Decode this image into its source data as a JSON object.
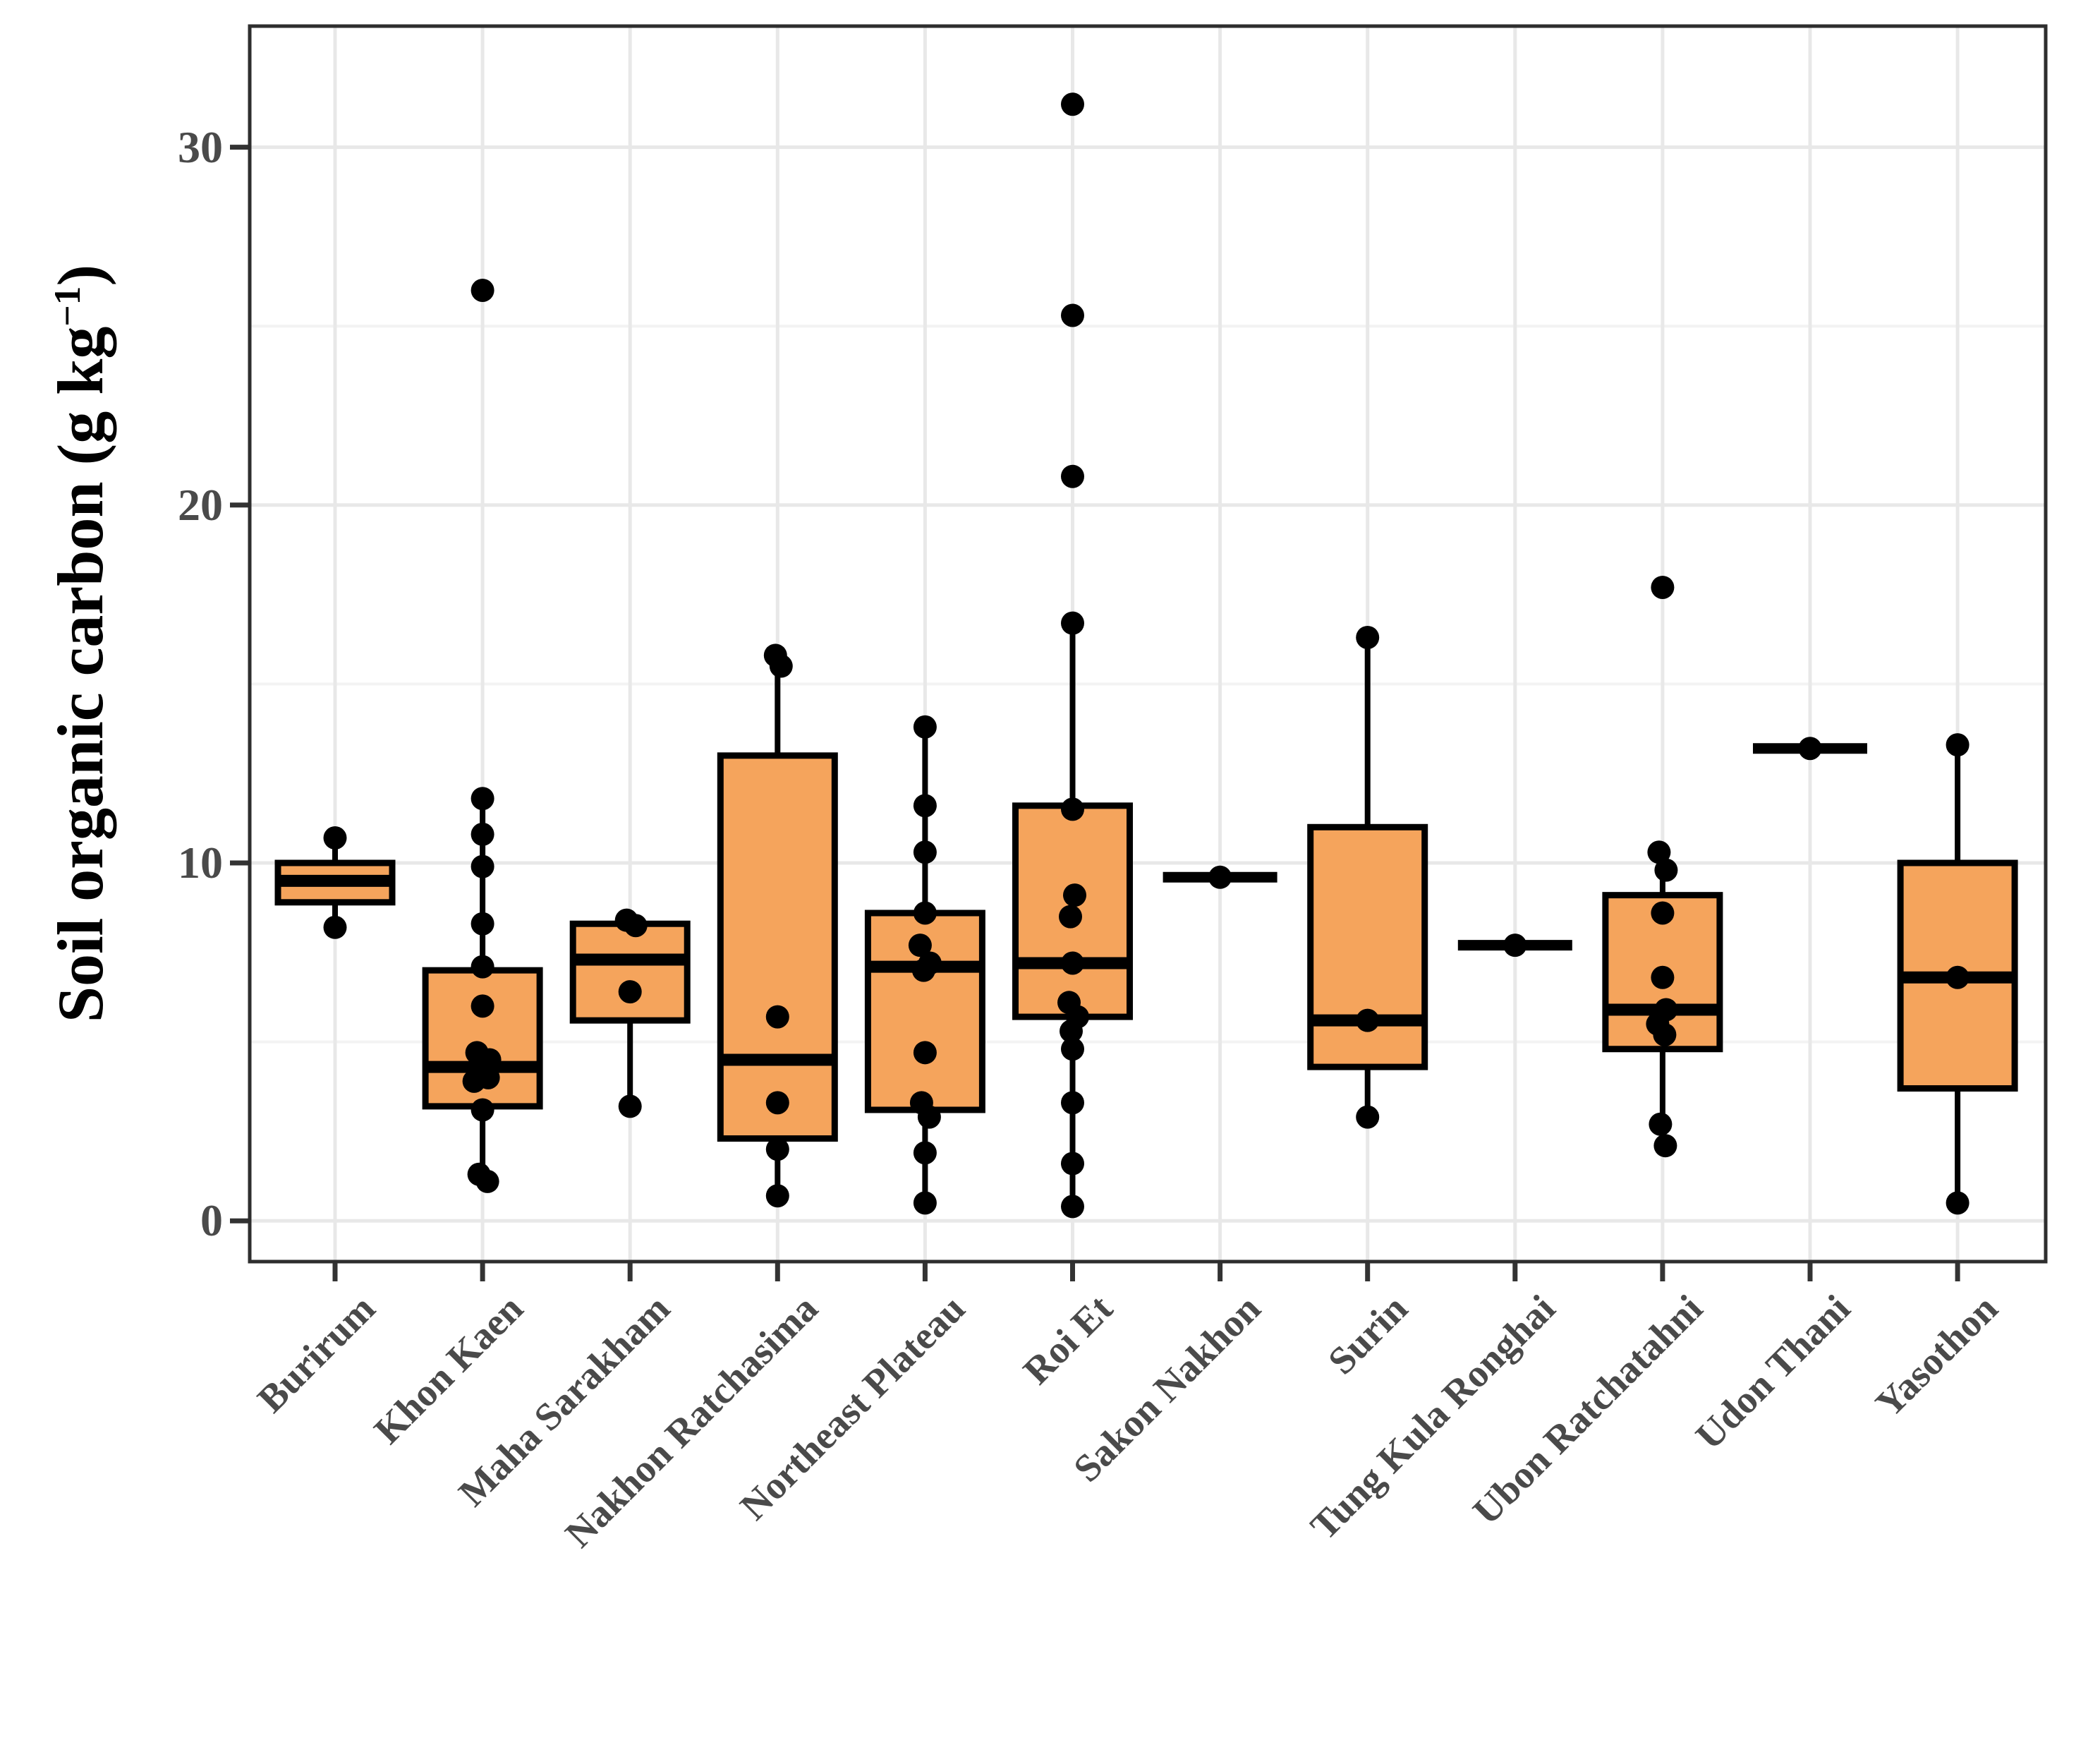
{
  "chart_data": {
    "type": "boxplot",
    "title": "",
    "xlabel": "",
    "ylabel": "Soil organic carbon (g kg−1)",
    "ylabel_parts": {
      "prefix": "Soil organic carbon (g kg",
      "sup": "−1",
      "suffix": ")"
    },
    "yticks": [
      0,
      10,
      20,
      30
    ],
    "yticks_minor": [
      5,
      15,
      25
    ],
    "ylim": [
      0,
      31.2
    ],
    "grid": {
      "horizontal_major": true,
      "horizontal_minor": true,
      "vertical_major_at_categories": true
    },
    "legend": "none",
    "colors": {
      "box_fill": "#F5A45C",
      "box_stroke": "#000000",
      "point": "#000000",
      "grid_major": "#E8E8E8",
      "grid_minor": "#F3F3F3",
      "panel_border": "#2E2E2E",
      "tick": "#333333",
      "axis_text": "#4A4A4A",
      "title_text": "#000000",
      "background": "#FFFFFF"
    },
    "categories": [
      "Burirum",
      "Khon Kaen",
      "Maha Sarakham",
      "Nakhon Ratchasima",
      "Northeast Plateau",
      "Roi Et",
      "Sakon Nakhon",
      "Surin",
      "Tung Kula Ronghai",
      "Ubon Ratchatahni",
      "Udon Thani",
      "Yasothon"
    ],
    "series": [
      {
        "label": "Burirum",
        "whisker_low": 8.2,
        "q1": 8.9,
        "median": 9.5,
        "q3": 10.0,
        "whisker_high": 10.7,
        "outliers": [],
        "points": [
          {
            "v": 10.7
          },
          {
            "v": 8.2
          }
        ]
      },
      {
        "label": "Khon Kaen",
        "whisker_low": 1.1,
        "q1": 3.2,
        "median": 4.3,
        "q3": 7.0,
        "whisker_high": 11.8,
        "outliers": [
          26.0
        ],
        "points": [
          {
            "v": 11.8
          },
          {
            "v": 10.8
          },
          {
            "v": 9.9
          },
          {
            "v": 8.3
          },
          {
            "v": 7.1
          },
          {
            "v": 6.0
          },
          {
            "v": 4.7,
            "dx": -8
          },
          {
            "v": 4.5,
            "dx": 10
          },
          {
            "v": 4.2,
            "dx": -4
          },
          {
            "v": 4.0,
            "dx": 8
          },
          {
            "v": 3.9,
            "dx": -12
          },
          {
            "v": 3.1
          },
          {
            "v": 1.3,
            "dx": -5
          },
          {
            "v": 1.1,
            "dx": 7
          }
        ]
      },
      {
        "label": "Maha Sarakham",
        "whisker_low": 3.2,
        "q1": 5.6,
        "median": 7.3,
        "q3": 8.3,
        "whisker_high": 8.4,
        "outliers": [],
        "points": [
          {
            "v": 8.4,
            "dx": -5
          },
          {
            "v": 8.25,
            "dx": 8
          },
          {
            "v": 6.4
          },
          {
            "v": 3.2
          }
        ]
      },
      {
        "label": "Nakhon Ratchasima",
        "whisker_low": 0.7,
        "q1": 2.3,
        "median": 4.5,
        "q3": 13.0,
        "whisker_high": 15.8,
        "outliers": [],
        "points": [
          {
            "v": 15.8,
            "dx": -3
          },
          {
            "v": 15.5,
            "dx": 5
          },
          {
            "v": 5.7
          },
          {
            "v": 3.3
          },
          {
            "v": 2.0
          },
          {
            "v": 0.7
          }
        ]
      },
      {
        "label": "Northeast Plateau",
        "whisker_low": 0.5,
        "q1": 3.1,
        "median": 7.1,
        "q3": 8.6,
        "whisker_high": 13.8,
        "outliers": [],
        "points": [
          {
            "v": 13.8
          },
          {
            "v": 11.6
          },
          {
            "v": 10.3
          },
          {
            "v": 8.6
          },
          {
            "v": 7.7,
            "dx": -7
          },
          {
            "v": 7.2,
            "dx": 7
          },
          {
            "v": 7.0,
            "dx": -2
          },
          {
            "v": 4.7
          },
          {
            "v": 3.3,
            "dx": -5
          },
          {
            "v": 2.9,
            "dx": 6
          },
          {
            "v": 1.9
          },
          {
            "v": 0.5
          }
        ]
      },
      {
        "label": "Roi Et",
        "whisker_low": 0.4,
        "q1": 5.7,
        "median": 7.2,
        "q3": 11.6,
        "whisker_high": 16.7,
        "outliers": [
          31.2,
          25.3,
          20.8
        ],
        "points": [
          {
            "v": 16.7
          },
          {
            "v": 11.5
          },
          {
            "v": 9.1,
            "dx": 3
          },
          {
            "v": 8.5,
            "dx": -3
          },
          {
            "v": 7.2
          },
          {
            "v": 6.1,
            "dx": -5
          },
          {
            "v": 5.7,
            "dx": 7
          },
          {
            "v": 5.3,
            "dx": -2
          },
          {
            "v": 4.8
          },
          {
            "v": 3.3
          },
          {
            "v": 1.6
          },
          {
            "v": 0.4
          }
        ]
      },
      {
        "label": "Sakon Nakhon",
        "single": 9.6,
        "outliers": [],
        "points": [
          {
            "v": 9.6
          }
        ]
      },
      {
        "label": "Surin",
        "whisker_low": 2.9,
        "q1": 4.3,
        "median": 5.6,
        "q3": 11.0,
        "whisker_high": 16.3,
        "outliers": [],
        "points": [
          {
            "v": 16.3
          },
          {
            "v": 5.6
          },
          {
            "v": 2.9
          }
        ]
      },
      {
        "label": "Tung Kula Ronghai",
        "single": 7.7,
        "outliers": [],
        "points": [
          {
            "v": 7.7
          }
        ]
      },
      {
        "label": "Ubon Ratchatahni",
        "whisker_low": 2.1,
        "q1": 4.8,
        "median": 5.9,
        "q3": 9.1,
        "whisker_high": 10.3,
        "outliers": [
          17.7
        ],
        "points": [
          {
            "v": 10.3,
            "dx": -5
          },
          {
            "v": 9.8,
            "dx": 5
          },
          {
            "v": 8.6
          },
          {
            "v": 6.8
          },
          {
            "v": 5.9,
            "dx": 5
          },
          {
            "v": 5.5,
            "dx": -7
          },
          {
            "v": 5.2,
            "dx": 3
          },
          {
            "v": 2.7,
            "dx": -3
          },
          {
            "v": 2.1,
            "dx": 4
          }
        ]
      },
      {
        "label": "Udon Thani",
        "single": 13.2,
        "outliers": [],
        "points": [
          {
            "v": 13.2
          }
        ]
      },
      {
        "label": "Yasothon",
        "whisker_low": 0.5,
        "q1": 3.7,
        "median": 6.8,
        "q3": 10.0,
        "whisker_high": 13.3,
        "outliers": [],
        "points": [
          {
            "v": 13.3
          },
          {
            "v": 6.8
          },
          {
            "v": 0.5
          }
        ]
      }
    ]
  }
}
